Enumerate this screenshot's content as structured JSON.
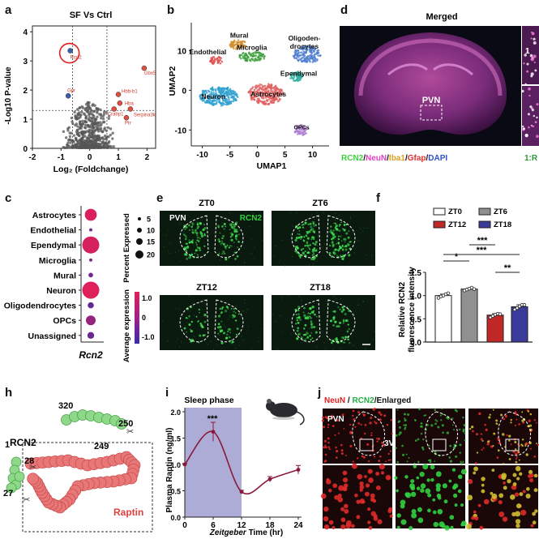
{
  "panel_labels": {
    "a": "a",
    "b": "b",
    "c": "c",
    "d": "d",
    "e": "e",
    "f": "f",
    "h": "h",
    "i": "i",
    "j": "j"
  },
  "a": {
    "title": "SF Vs Ctrl",
    "xlabel": "Log₂ (Foldchange)",
    "ylabel": "-Log10 P-value",
    "gene_labels": [
      "Rcn2",
      "Gpr",
      "Hbb-b1",
      "Hba",
      "Crabp1",
      "Gbx5",
      "Serpina3k",
      "Ptr"
    ],
    "point_color_up": "#e0503c",
    "point_color_down": "#3a5fb0"
  },
  "b": {
    "xlabel": "UMAP1",
    "ylabel": "UMAP2",
    "clusters": [
      "Mural",
      "Endothelial",
      "Microglia",
      "Oligoden-\ndrocytes",
      "Ependymal",
      "Neuron",
      "Astrocytes",
      "OPCs"
    ]
  },
  "c": {
    "xlabel": "Rcn2",
    "size_legend_title": "Percent Expressed",
    "color_legend_title": "Average expression"
  },
  "d": {
    "title": "Merged",
    "roi_label": "PVN",
    "inset_label": "1",
    "channel_labels": [
      {
        "text": "RCN2",
        "color": "#3cd23c"
      },
      {
        "text": "/",
        "color": "#111111"
      },
      {
        "text": "NeuN",
        "color": "#e040c0"
      },
      {
        "text": "/",
        "color": "#111111"
      },
      {
        "text": "Iba1",
        "color": "#e0a020"
      },
      {
        "text": "/",
        "color": "#111111"
      },
      {
        "text": "Gfap",
        "color": "#e03030"
      },
      {
        "text": "/",
        "color": "#111111"
      },
      {
        "text": "DAPI",
        "color": "#3050d0"
      }
    ],
    "cut_label": "1:R"
  },
  "e": {
    "region_label": "PVN",
    "stain_label": "RCN2",
    "timepoints": [
      "ZT0",
      "ZT6",
      "ZT12",
      "ZT18"
    ]
  },
  "f": {
    "ylabel": "Relative RCN2\nfluorescence intensity",
    "significance": [
      "*",
      "***",
      "***",
      "**"
    ]
  },
  "h": {
    "protein_label": "RCN2",
    "partner_label": "Raptin",
    "residues": [
      "320",
      "250",
      "249",
      "1",
      "28",
      "27"
    ]
  },
  "i": {
    "shade_label": "Sleep phase",
    "peak_marker": "***",
    "xlabel_italic": "Zeitgeber",
    "xlabel_rest": " Time (hr)",
    "ylabel": "Plasma Raptin (ng/ml)"
  },
  "j": {
    "stain_labels": [
      {
        "text": "NeuN",
        "color": "#e02020"
      },
      {
        "text": " / ",
        "color": "#111111"
      },
      {
        "text": "RCN2",
        "color": "#20b040"
      },
      {
        "text": "/Enlarged",
        "color": "#111111"
      }
    ],
    "region_label": "PVN",
    "ventricle_label": "3V"
  },
  "chart_data": [
    {
      "type": "scatter",
      "id": "a",
      "title": "SF Vs Ctrl",
      "xlabel": "Log₂ (Foldchange)",
      "ylabel": "-Log10 P-value",
      "xlim": [
        -2,
        2.3
      ],
      "ylim": [
        0,
        4.2
      ],
      "xticks": [
        -2,
        -1,
        0,
        1,
        2
      ],
      "yticks": [
        0,
        1,
        2,
        3,
        4
      ],
      "thresholds": {
        "x": [
          -0.6,
          0.6
        ],
        "y": 1.3
      },
      "highlighted": [
        {
          "label": "Rcn2",
          "x": -0.68,
          "y": 3.35,
          "dir": "down"
        },
        {
          "label": "Gpr",
          "x": -0.75,
          "y": 1.8,
          "dir": "down"
        },
        {
          "label": "Hbb-b1",
          "x": 1.0,
          "y": 1.85,
          "dir": "up"
        },
        {
          "label": "Hba",
          "x": 1.05,
          "y": 1.55,
          "dir": "up"
        },
        {
          "label": "Crabp1",
          "x": 0.85,
          "y": 1.35,
          "dir": "up"
        },
        {
          "label": "Gbx5",
          "x": 1.9,
          "y": 2.75,
          "dir": "up"
        },
        {
          "label": "Serpina3k",
          "x": 1.42,
          "y": 1.35,
          "dir": "up"
        },
        {
          "label": "Ptr",
          "x": 1.28,
          "y": 1.05,
          "dir": "up"
        }
      ]
    },
    {
      "type": "scatter",
      "id": "b",
      "xlabel": "UMAP1",
      "ylabel": "UMAP2",
      "xticks": [
        -10,
        -5,
        0,
        5,
        10
      ],
      "yticks": [
        -10,
        0,
        10
      ],
      "xlim": [
        -12,
        13
      ],
      "ylim": [
        -14,
        17
      ],
      "clusters": [
        {
          "name": "Mural",
          "x": -3.5,
          "y": 11.5,
          "color": "#d09030"
        },
        {
          "name": "Endothelial",
          "x": -7.5,
          "y": 7.5,
          "color": "#e05050"
        },
        {
          "name": "Microglia",
          "x": -1.0,
          "y": 8.5,
          "color": "#40a040"
        },
        {
          "name": "Oligodendrocytes",
          "x": 9.0,
          "y": 9.0,
          "color": "#5080d0"
        },
        {
          "name": "Ependymal",
          "x": 7.0,
          "y": 3.5,
          "color": "#30b0a0"
        },
        {
          "name": "Neuron",
          "x": -7.0,
          "y": -1.5,
          "color": "#30a0d0"
        },
        {
          "name": "Astrocytes",
          "x": 1.5,
          "y": -1.0,
          "color": "#e06060"
        },
        {
          "name": "OPCs",
          "x": 8.0,
          "y": -10.0,
          "color": "#b080d0"
        }
      ]
    },
    {
      "type": "scatter",
      "id": "c",
      "chart_kind": "dotplot",
      "xlabel": "Rcn2",
      "categories": [
        "Astrocytes",
        "Endothelial",
        "Ependymal",
        "Microglia",
        "Mural",
        "Neuron",
        "Oligodendrocytes",
        "OPCs",
        "Unassigned"
      ],
      "percent_expressed": [
        13,
        1,
        20,
        1,
        3,
        20,
        5,
        10,
        6
      ],
      "average_expression": [
        1.1,
        -0.3,
        1.05,
        -0.2,
        -0.4,
        1.2,
        -0.6,
        0.1,
        -0.5
      ],
      "size_legend": [
        5,
        10,
        15,
        20
      ],
      "color_legend": [
        1.0,
        0,
        -1.0
      ],
      "color_range": [
        "#4a2aa8",
        "#e0205a"
      ]
    },
    {
      "type": "bar",
      "id": "f",
      "categories": [
        "ZT0",
        "ZT6",
        "ZT12",
        "ZT18"
      ],
      "values": [
        1.0,
        1.14,
        0.58,
        0.76
      ],
      "errors": [
        0.03,
        0.02,
        0.03,
        0.04
      ],
      "colors": [
        "#ffffff",
        "#909090",
        "#c02828",
        "#3a3a9a"
      ],
      "points": [
        [
          0.95,
          0.98,
          1.0,
          1.03,
          1.05
        ],
        [
          1.11,
          1.13,
          1.15,
          1.17,
          1.14
        ],
        [
          0.53,
          0.56,
          0.59,
          0.61,
          0.6
        ],
        [
          0.7,
          0.73,
          0.77,
          0.8,
          0.8
        ]
      ],
      "ylabel": "Relative RCN2\nfluorescence intensity",
      "ylim": [
        0,
        1.5
      ],
      "yticks": [
        0.0,
        0.5,
        1.0,
        1.5
      ],
      "legend": [
        "ZT0",
        "ZT6",
        "ZT12",
        "ZT18"
      ],
      "legend_position": "top"
    },
    {
      "type": "line",
      "id": "i",
      "x": [
        0,
        6,
        12,
        18,
        24
      ],
      "y": [
        1.0,
        1.62,
        0.48,
        0.72,
        0.9
      ],
      "errors": [
        0.02,
        0.18,
        0.03,
        0.05,
        0.08
      ],
      "xticks": [
        0,
        6,
        12,
        18,
        24
      ],
      "yticks": [
        0.0,
        0.5,
        1.0,
        1.5,
        2.0
      ],
      "xlim": [
        0,
        24
      ],
      "ylim": [
        0,
        2.0
      ],
      "shaded_x": [
        0,
        12
      ],
      "shade_color": "#9090c8",
      "line_color": "#8a1a3a",
      "ylabel": "Plasma Raptin (ng/ml)"
    }
  ]
}
